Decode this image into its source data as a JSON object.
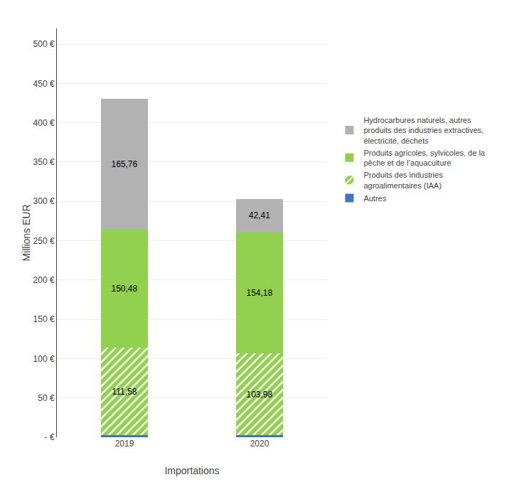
{
  "chart_data": {
    "type": "bar",
    "stacked": true,
    "categories": [
      "2019",
      "2020"
    ],
    "xlabel": "Importations",
    "ylabel": "Millions EUR",
    "ylim": [
      0,
      520
    ],
    "yticks": [
      {
        "value": 0,
        "label": "- €"
      },
      {
        "value": 50,
        "label": "50 €"
      },
      {
        "value": 100,
        "label": "100 €"
      },
      {
        "value": 150,
        "label": "150 €"
      },
      {
        "value": 200,
        "label": "200 €"
      },
      {
        "value": 250,
        "label": "250 €"
      },
      {
        "value": 300,
        "label": "300 €"
      },
      {
        "value": 350,
        "label": "350 €"
      },
      {
        "value": 400,
        "label": "400 €"
      },
      {
        "value": 450,
        "label": "450 €"
      },
      {
        "value": 500,
        "label": "500 €"
      }
    ],
    "grid": true,
    "legend": "right",
    "data_labels": true,
    "series": [
      {
        "name": "Autres",
        "color": "#4472c4",
        "values": [
          2.5,
          2.5
        ]
      },
      {
        "name": "Produits des industries\nagroalimentaires (IAA)",
        "color": "#92d050",
        "marker": "hatch",
        "values": [
          111.58,
          103.98
        ],
        "value_labels": [
          "111,58",
          "103,98"
        ]
      },
      {
        "name": "Produits agricoles, sylvicoles, de la\npêche et de l’aquaculture",
        "color": "#92d050",
        "values": [
          150.48,
          154.18
        ],
        "value_labels": [
          "150,48",
          "154,18"
        ]
      },
      {
        "name": "Hydrocarbures naturels, autres\nproduits des industries extractives,\nélectricité, déchets",
        "color": "#b2b2b2",
        "values": [
          165.76,
          42.41
        ],
        "value_labels": [
          "165,76",
          "42,41"
        ]
      }
    ]
  }
}
